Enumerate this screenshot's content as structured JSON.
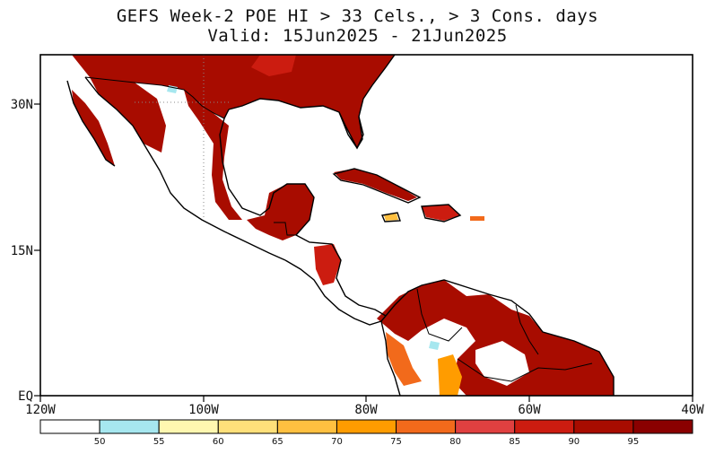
{
  "title_line1": "GEFS Week-2 POE HI > 33 Cels., > 3 Cons. days",
  "title_line2": "Valid: 15Jun2025 - 21Jun2025",
  "axes": {
    "y_ticks": [
      "30N",
      "15N",
      "EQ"
    ],
    "x_ticks": [
      "120W",
      "100W",
      "80W",
      "60W",
      "40W"
    ]
  },
  "colorbar": {
    "labels": [
      "50",
      "55",
      "60",
      "65",
      "70",
      "75",
      "80",
      "85",
      "90",
      "95"
    ],
    "colors": [
      "#ffffff",
      "#a6e7ef",
      "#fff7b0",
      "#ffe07a",
      "#ffc040",
      "#ff9c00",
      "#f26a1b",
      "#e04040",
      "#cc1c10",
      "#a80c00",
      "#8a0000"
    ]
  },
  "colors": {
    "land_background": "#ffffff",
    "high_probability": "#a80c00",
    "coastline": "#000000"
  }
}
